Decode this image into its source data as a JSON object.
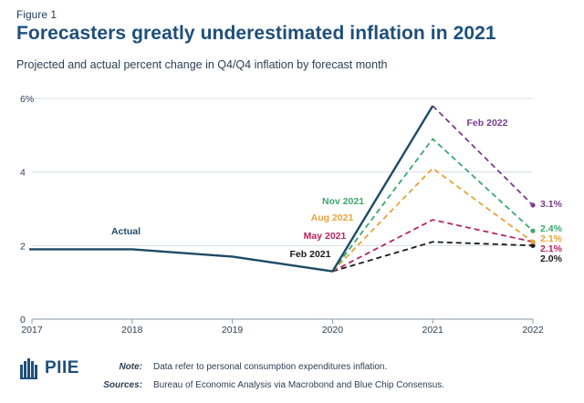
{
  "figure_label": "Figure 1",
  "title": "Forecasters greatly underestimated inflation in 2021",
  "subtitle": "Projected and actual percent change in Q4/Q4 inflation by forecast month",
  "colors": {
    "actual": "#1e4a66",
    "feb2022": "#7a3b8f",
    "nov2021": "#3aa86b",
    "aug2021": "#e8a23a",
    "may2021": "#b8245f",
    "feb2021": "#1a1a1a",
    "grid": "#cfd6dd",
    "brand": "#1e4f7b"
  },
  "chart_data": {
    "type": "line",
    "x_ticks": [
      "2017",
      "2018",
      "2019",
      "2020",
      "2021",
      "2022"
    ],
    "y_ticks": [
      "0",
      "2",
      "4",
      "6%"
    ],
    "ylim": [
      0,
      6
    ],
    "xlim": [
      2017,
      2022
    ],
    "grid": true,
    "series": [
      {
        "name": "Actual",
        "key": "actual",
        "style": "solid",
        "points": [
          [
            2017,
            1.9
          ],
          [
            2018,
            1.9
          ],
          [
            2019,
            1.7
          ],
          [
            2020,
            1.3
          ],
          [
            2021,
            5.8
          ]
        ]
      },
      {
        "name": "Feb 2022",
        "key": "feb2022",
        "style": "dashed",
        "points": [
          [
            2021,
            5.8
          ],
          [
            2022,
            3.1
          ]
        ],
        "end_label": "3.1%"
      },
      {
        "name": "Nov 2021",
        "key": "nov2021",
        "style": "dashed",
        "points": [
          [
            2020,
            1.3
          ],
          [
            2021,
            4.9
          ],
          [
            2022,
            2.4
          ]
        ],
        "end_label": "2.4%"
      },
      {
        "name": "Aug 2021",
        "key": "aug2021",
        "style": "dashed",
        "points": [
          [
            2020,
            1.3
          ],
          [
            2021,
            4.1
          ],
          [
            2022,
            2.1
          ]
        ],
        "end_label": "2.1%"
      },
      {
        "name": "May 2021",
        "key": "may2021",
        "style": "dashed",
        "points": [
          [
            2020,
            1.3
          ],
          [
            2021,
            2.7
          ],
          [
            2022,
            2.1
          ]
        ],
        "end_label": "2.1%"
      },
      {
        "name": "Feb 2021",
        "key": "feb2021",
        "style": "dashed",
        "points": [
          [
            2020,
            1.3
          ],
          [
            2021,
            2.1
          ],
          [
            2022,
            2.0
          ]
        ],
        "end_label": "2.0%"
      }
    ]
  },
  "footer": {
    "logo_text": "PIIE",
    "note_label": "Note:",
    "note_text": "Data refer to personal consumption expenditures inflation.",
    "sources_label": "Sources:",
    "sources_text": "Bureau of Economic Analysis via Macrobond and Blue Chip Consensus."
  }
}
